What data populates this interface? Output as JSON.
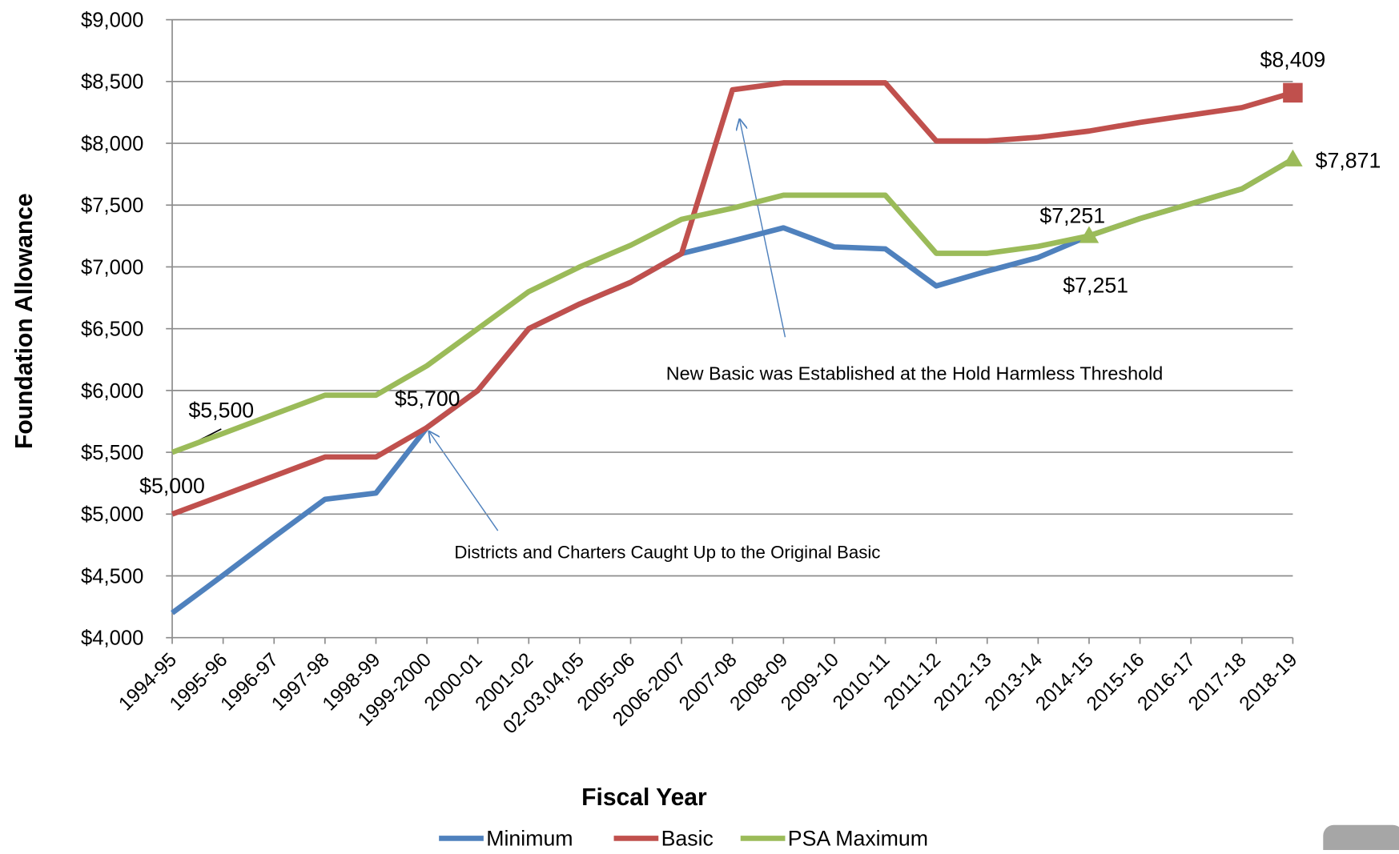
{
  "chart_data": {
    "type": "line",
    "x_label": "Fiscal Year",
    "y_label": "Foundation Allowance",
    "categories": [
      "1994-95",
      "1995-96",
      "1996-97",
      "1997-98",
      "1998-99",
      "1999-2000",
      "2000-01",
      "2001-02",
      "02-03,04,05",
      "2005-06",
      "2006-2007",
      "2007-08",
      "2008-09",
      "2009-10",
      "2010-11",
      "2011-12",
      "2012-13",
      "2013-14",
      "2014-15",
      "2015-16",
      "2016-17",
      "2017-18",
      "2018-19"
    ],
    "series": [
      {
        "name": "Minimum",
        "color": "#4f81bd",
        "values": [
          4200,
          4505,
          4816,
          5120,
          5170,
          5700,
          6000,
          6500,
          6700,
          6875,
          7108,
          7210,
          7316,
          7162,
          7146,
          6846,
          6966,
          7076,
          7251,
          7391,
          7511,
          7631,
          7871
        ]
      },
      {
        "name": "Basic",
        "color": "#c0504d",
        "values": [
          5000,
          5153,
          5308,
          5462,
          5462,
          5700,
          6000,
          6500,
          6700,
          6875,
          7108,
          8433,
          8489,
          8489,
          8489,
          8019,
          8019,
          8049,
          8099,
          8169,
          8229,
          8289,
          8409
        ]
      },
      {
        "name": "PSA Maximum",
        "color": "#9bbb59",
        "values": [
          5500,
          5653,
          5808,
          5962,
          5962,
          6200,
          6500,
          6800,
          7000,
          7175,
          7385,
          7475,
          7580,
          7580,
          7580,
          7110,
          7110,
          7166,
          7251,
          7391,
          7511,
          7631,
          7871
        ]
      }
    ],
    "ylim": [
      4000,
      9000
    ],
    "yticks": [
      {
        "value": 4000,
        "label": "$4,000"
      },
      {
        "value": 4500,
        "label": "$4,500"
      },
      {
        "value": 5000,
        "label": "$5,000"
      },
      {
        "value": 5500,
        "label": "$5,500"
      },
      {
        "value": 6000,
        "label": "$6,000"
      },
      {
        "value": 6500,
        "label": "$6,500"
      },
      {
        "value": 7000,
        "label": "$7,000"
      },
      {
        "value": 7500,
        "label": "$7,500"
      },
      {
        "value": 8000,
        "label": "$8,000"
      },
      {
        "value": 8500,
        "label": "$8,500"
      },
      {
        "value": 9000,
        "label": "$9,000"
      }
    ],
    "grid": true,
    "legend": "bottom",
    "annotations": [
      "$5,500",
      "$5,700",
      "$5,000",
      "$7,251",
      "$7,251",
      "$8,409",
      "$7,871",
      "New Basic was Established at the Hold Harmless Threshold",
      "Districts and Charters Caught Up to the Original Basic"
    ]
  }
}
